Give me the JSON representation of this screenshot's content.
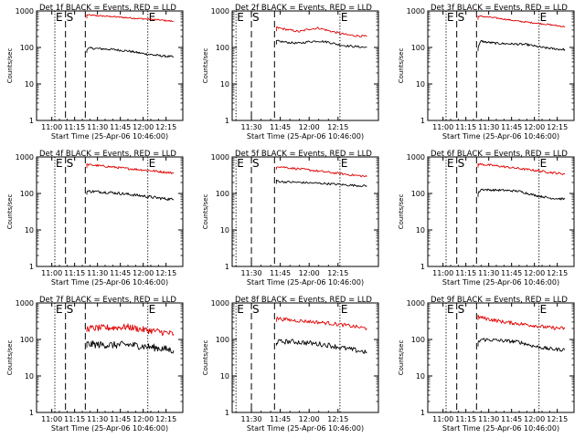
{
  "figure": {
    "x_title": "Start Time (25-Apr-06 10:46:00)",
    "y_title": "Counts/sec"
  },
  "chart_data": [
    {
      "type": "line",
      "title": "Det 1f BLACK = Events, RED = LLD",
      "xlabel": "Start Time (25-Apr-06 10:46:00)",
      "ylabel": "Counts/sec",
      "yscale": "log",
      "ylim": [
        1,
        1000
      ],
      "yticks": [
        "1",
        "10",
        "100",
        "1000"
      ],
      "xticks": [
        "11:00",
        "11:15",
        "11:30",
        "11:45",
        "12:00",
        "12:15"
      ],
      "xlim_minutes": [
        650,
        746
      ],
      "markers": [
        {
          "label": "E",
          "minute": 662,
          "style": "dotted"
        },
        {
          "label": "S",
          "minute": 669,
          "style": "dashed"
        },
        {
          "label": "",
          "minute": 682,
          "style": "dashed"
        },
        {
          "label": "E",
          "minute": 723,
          "style": "dotted"
        }
      ],
      "series": [
        {
          "name": "RED = LLD",
          "color": "#e00000",
          "x": [
            683,
            690,
            700,
            710,
            720,
            730,
            740
          ],
          "values": [
            780,
            740,
            700,
            650,
            610,
            570,
            520
          ],
          "noise": 0.02
        },
        {
          "name": "BLACK = Events",
          "color": "#000000",
          "x": [
            683,
            685,
            690,
            700,
            710,
            720,
            730,
            740
          ],
          "values": [
            90,
            95,
            93,
            88,
            80,
            68,
            60,
            55
          ],
          "noise": 0.03
        }
      ]
    },
    {
      "type": "line",
      "title": "Det 2f BLACK = Events, RED = LLD",
      "xlabel": "Start Time (25-Apr-06 10:46:00)",
      "ylabel": "Counts/sec",
      "yscale": "log",
      "ylim": [
        1,
        1000
      ],
      "yticks": [
        "1",
        "10",
        "100",
        "1000"
      ],
      "xticks": [
        "11:30",
        "11:45",
        "12:00",
        "12:15"
      ],
      "xlim_minutes": [
        680,
        756
      ],
      "markers": [
        {
          "label": "E",
          "minute": 682,
          "style": "dotted"
        },
        {
          "label": "S",
          "minute": 690,
          "style": "dashed"
        },
        {
          "label": "",
          "minute": 702,
          "style": "dashed"
        },
        {
          "label": "E",
          "minute": 736,
          "style": "dotted"
        }
      ],
      "series": [
        {
          "name": "RED = LLD",
          "color": "#e00000",
          "x": [
            703,
            710,
            715,
            720,
            725,
            730,
            735,
            740,
            750
          ],
          "values": [
            350,
            300,
            270,
            320,
            340,
            290,
            250,
            220,
            200
          ],
          "noise": 0.03
        },
        {
          "name": "BLACK = Events",
          "color": "#000000",
          "x": [
            703,
            710,
            715,
            720,
            725,
            730,
            735,
            740,
            750
          ],
          "values": [
            150,
            135,
            130,
            145,
            150,
            140,
            120,
            110,
            100
          ],
          "noise": 0.03
        }
      ]
    },
    {
      "type": "line",
      "title": "Det 3f BLACK = Events, RED = LLD",
      "xlabel": "Start Time (25-Apr-06 10:46:00)",
      "ylabel": "Counts/sec",
      "yscale": "log",
      "ylim": [
        1,
        1000
      ],
      "yticks": [
        "1",
        "10",
        "100",
        "1000"
      ],
      "xticks": [
        "11:00",
        "11:15",
        "11:30",
        "11:45",
        "12:00",
        "12:15"
      ],
      "xlim_minutes": [
        650,
        746
      ],
      "markers": [
        {
          "label": "E",
          "minute": 662,
          "style": "dotted"
        },
        {
          "label": "S",
          "minute": 669,
          "style": "dashed"
        },
        {
          "label": "",
          "minute": 682,
          "style": "dashed"
        },
        {
          "label": "E",
          "minute": 723,
          "style": "dotted"
        }
      ],
      "series": [
        {
          "name": "RED = LLD",
          "color": "#e00000",
          "x": [
            683,
            690,
            700,
            710,
            720,
            730,
            740
          ],
          "values": [
            720,
            680,
            600,
            520,
            470,
            420,
            370
          ],
          "noise": 0.02
        },
        {
          "name": "BLACK = Events",
          "color": "#000000",
          "x": [
            683,
            685,
            688,
            695,
            705,
            715,
            725,
            735,
            740
          ],
          "values": [
            100,
            150,
            140,
            130,
            125,
            120,
            100,
            90,
            88
          ],
          "noise": 0.03
        }
      ]
    },
    {
      "type": "line",
      "title": "Det 4f BLACK = Events, RED = LLD",
      "xlabel": "Start Time (25-Apr-06 10:46:00)",
      "ylabel": "Counts/sec",
      "yscale": "log",
      "ylim": [
        1,
        1000
      ],
      "yticks": [
        "1",
        "10",
        "100",
        "1000"
      ],
      "xticks": [
        "11:00",
        "11:15",
        "11:30",
        "11:45",
        "12:00",
        "12:15"
      ],
      "xlim_minutes": [
        650,
        746
      ],
      "markers": [
        {
          "label": "E",
          "minute": 662,
          "style": "dotted"
        },
        {
          "label": "S",
          "minute": 669,
          "style": "dashed"
        },
        {
          "label": "",
          "minute": 682,
          "style": "dashed"
        },
        {
          "label": "E",
          "minute": 723,
          "style": "dotted"
        }
      ],
      "series": [
        {
          "name": "RED = LLD",
          "color": "#e00000",
          "x": [
            683,
            690,
            700,
            710,
            720,
            730,
            740
          ],
          "values": [
            620,
            580,
            530,
            480,
            440,
            400,
            360
          ],
          "noise": 0.03
        },
        {
          "name": "BLACK = Events",
          "color": "#000000",
          "x": [
            683,
            690,
            700,
            710,
            720,
            730,
            740
          ],
          "values": [
            115,
            112,
            105,
            95,
            85,
            75,
            68
          ],
          "noise": 0.04
        }
      ]
    },
    {
      "type": "line",
      "title": "Det 5f BLACK = Events, RED = LLD",
      "xlabel": "Start Time (25-Apr-06 10:46:00)",
      "ylabel": "Counts/sec",
      "yscale": "log",
      "ylim": [
        1,
        1000
      ],
      "yticks": [
        "1",
        "10",
        "100",
        "1000"
      ],
      "xticks": [
        "11:30",
        "11:45",
        "12:00",
        "12:15"
      ],
      "xlim_minutes": [
        680,
        756
      ],
      "markers": [
        {
          "label": "E",
          "minute": 682,
          "style": "dotted"
        },
        {
          "label": "S",
          "minute": 690,
          "style": "dashed"
        },
        {
          "label": "",
          "minute": 702,
          "style": "dashed"
        },
        {
          "label": "E",
          "minute": 736,
          "style": "dotted"
        }
      ],
      "series": [
        {
          "name": "RED = LLD",
          "color": "#e00000",
          "x": [
            703,
            710,
            720,
            730,
            740,
            750
          ],
          "values": [
            560,
            500,
            440,
            380,
            330,
            290
          ],
          "noise": 0.03
        },
        {
          "name": "BLACK = Events",
          "color": "#000000",
          "x": [
            703,
            705,
            710,
            720,
            730,
            740,
            750
          ],
          "values": [
            230,
            210,
            205,
            195,
            185,
            170,
            160
          ],
          "noise": 0.03
        }
      ]
    },
    {
      "type": "line",
      "title": "Det 6f BLACK = Events, RED = LLD",
      "xlabel": "Start Time (25-Apr-06 10:46:00)",
      "ylabel": "Counts/sec",
      "yscale": "log",
      "ylim": [
        1,
        1000
      ],
      "yticks": [
        "1",
        "10",
        "100",
        "1000"
      ],
      "xticks": [
        "11:00",
        "11:15",
        "11:30",
        "11:45",
        "12:00",
        "12:15"
      ],
      "xlim_minutes": [
        650,
        746
      ],
      "markers": [
        {
          "label": "E",
          "minute": 662,
          "style": "dotted"
        },
        {
          "label": "S",
          "minute": 669,
          "style": "dashed"
        },
        {
          "label": "",
          "minute": 682,
          "style": "dashed"
        },
        {
          "label": "E",
          "minute": 723,
          "style": "dotted"
        }
      ],
      "series": [
        {
          "name": "RED = LLD",
          "color": "#e00000",
          "x": [
            683,
            690,
            700,
            710,
            720,
            730,
            740
          ],
          "values": [
            640,
            600,
            540,
            480,
            430,
            380,
            340
          ],
          "noise": 0.03
        },
        {
          "name": "BLACK = Events",
          "color": "#000000",
          "x": [
            683,
            685,
            690,
            700,
            710,
            720,
            730,
            740
          ],
          "values": [
            100,
            130,
            125,
            122,
            115,
            90,
            75,
            70
          ],
          "noise": 0.03
        }
      ]
    },
    {
      "type": "line",
      "title": "Det 7f BLACK = Events, RED = LLD",
      "xlabel": "Start Time (25-Apr-06 10:46:00)",
      "ylabel": "Counts/sec",
      "yscale": "log",
      "ylim": [
        1,
        1000
      ],
      "yticks": [
        "1",
        "10",
        "100",
        "1000"
      ],
      "xticks": [
        "11:00",
        "11:15",
        "11:30",
        "11:45",
        "12:00",
        "12:15"
      ],
      "xlim_minutes": [
        650,
        746
      ],
      "markers": [
        {
          "label": "E",
          "minute": 662,
          "style": "dotted"
        },
        {
          "label": "S",
          "minute": 669,
          "style": "dashed"
        },
        {
          "label": "",
          "minute": 682,
          "style": "dashed"
        },
        {
          "label": "E",
          "minute": 723,
          "style": "dotted"
        }
      ],
      "series": [
        {
          "name": "RED = LLD",
          "color": "#e00000",
          "x": [
            683,
            690,
            700,
            710,
            720,
            730,
            740
          ],
          "values": [
            200,
            205,
            210,
            220,
            185,
            165,
            140
          ],
          "noise": 0.09
        },
        {
          "name": "BLACK = Events",
          "color": "#000000",
          "x": [
            683,
            690,
            700,
            710,
            720,
            730,
            740
          ],
          "values": [
            75,
            72,
            70,
            72,
            65,
            58,
            50
          ],
          "noise": 0.1
        }
      ]
    },
    {
      "type": "line",
      "title": "Det 8f BLACK = Events, RED = LLD",
      "xlabel": "Start Time (25-Apr-06 10:46:00)",
      "ylabel": "Counts/sec",
      "yscale": "log",
      "ylim": [
        1,
        1000
      ],
      "yticks": [
        "1",
        "10",
        "100",
        "1000"
      ],
      "xticks": [
        "11:30",
        "11:45",
        "12:00",
        "12:15"
      ],
      "xlim_minutes": [
        680,
        756
      ],
      "markers": [
        {
          "label": "E",
          "minute": 682,
          "style": "dotted"
        },
        {
          "label": "S",
          "minute": 690,
          "style": "dashed"
        },
        {
          "label": "",
          "minute": 702,
          "style": "dashed"
        },
        {
          "label": "E",
          "minute": 736,
          "style": "dotted"
        }
      ],
      "series": [
        {
          "name": "RED = LLD",
          "color": "#e00000",
          "x": [
            703,
            710,
            720,
            730,
            740,
            750
          ],
          "values": [
            380,
            340,
            310,
            280,
            240,
            200
          ],
          "noise": 0.05
        },
        {
          "name": "BLACK = Events",
          "color": "#000000",
          "x": [
            703,
            710,
            720,
            730,
            740,
            750
          ],
          "values": [
            85,
            88,
            80,
            70,
            55,
            45
          ],
          "noise": 0.07
        }
      ]
    },
    {
      "type": "line",
      "title": "Det 9f BLACK = Events, RED = LLD",
      "xlabel": "Start Time (25-Apr-06 10:46:00)",
      "ylabel": "Counts/sec",
      "yscale": "log",
      "ylim": [
        1,
        1000
      ],
      "yticks": [
        "1",
        "10",
        "100",
        "1000"
      ],
      "xticks": [
        "11:00",
        "11:15",
        "11:30",
        "11:45",
        "12:00",
        "12:15"
      ],
      "xlim_minutes": [
        650,
        746
      ],
      "markers": [
        {
          "label": "E",
          "minute": 662,
          "style": "dotted"
        },
        {
          "label": "S",
          "minute": 669,
          "style": "dashed"
        },
        {
          "label": "",
          "minute": 682,
          "style": "dashed"
        },
        {
          "label": "E",
          "minute": 723,
          "style": "dotted"
        }
      ],
      "series": [
        {
          "name": "RED = LLD",
          "color": "#e00000",
          "x": [
            683,
            690,
            700,
            710,
            720,
            730,
            740
          ],
          "values": [
            420,
            360,
            300,
            270,
            240,
            210,
            200
          ],
          "noise": 0.05
        },
        {
          "name": "BLACK = Events",
          "color": "#000000",
          "x": [
            683,
            685,
            690,
            700,
            710,
            720,
            730,
            740
          ],
          "values": [
            80,
            100,
            98,
            92,
            85,
            65,
            55,
            52
          ],
          "noise": 0.05
        }
      ]
    }
  ]
}
